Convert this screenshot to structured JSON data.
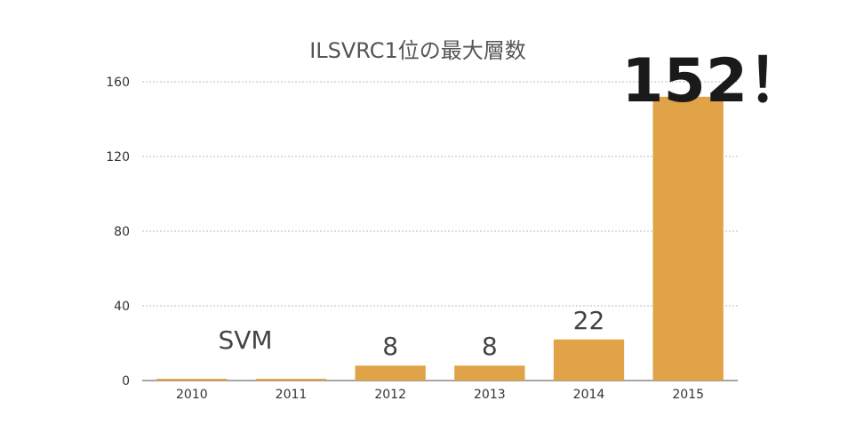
{
  "chart_data": {
    "type": "bar",
    "title": "ILSVRC1位の最大層数",
    "categories": [
      "2010",
      "2011",
      "2012",
      "2013",
      "2014",
      "2015"
    ],
    "values": [
      0,
      0,
      8,
      8,
      22,
      152
    ],
    "data_labels": [
      "",
      "",
      "8",
      "8",
      "22",
      "152！"
    ],
    "annotation": "SVM",
    "y_ticks": [
      "0",
      "40",
      "80",
      "120",
      "160"
    ],
    "ylim": [
      0,
      160
    ],
    "grid": true,
    "bar_color": "#E0A347"
  }
}
